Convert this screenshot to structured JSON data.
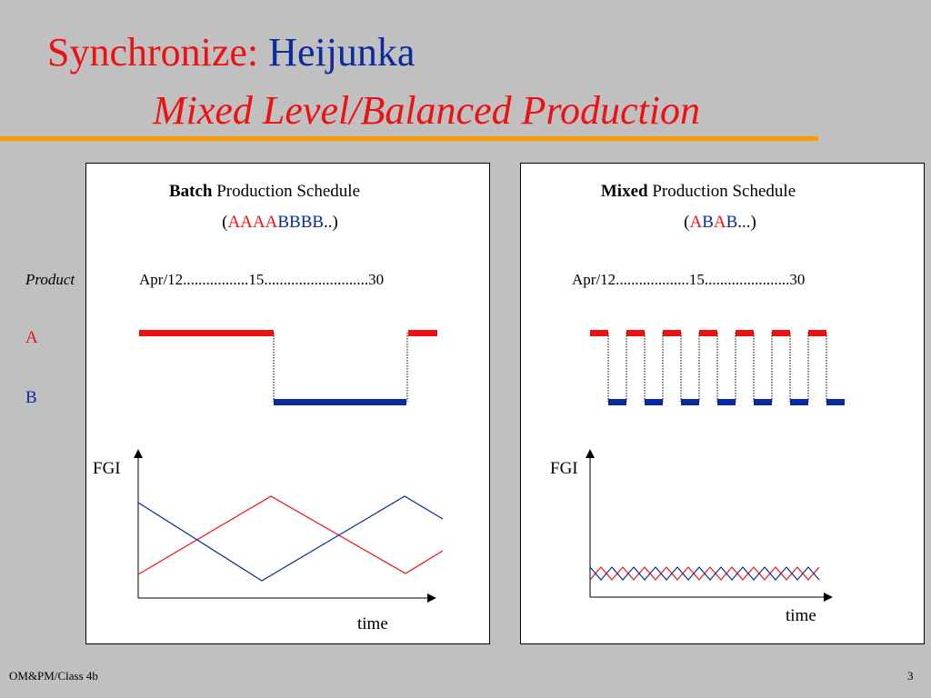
{
  "slide": {
    "title_part1": "Synchronize:",
    "title_part2": "Heijunka",
    "subtitle": "Mixed Level/Balanced Production",
    "footer_left": "OM&PM/Class 4b",
    "page_number": "3"
  },
  "rows": {
    "product_label": "Product",
    "a_label": "A",
    "b_label": "B"
  },
  "batch": {
    "heading_bold": "Batch",
    "heading_rest": "Production Schedule",
    "seq_open": "(",
    "seq_a": "AAAA",
    "seq_b": "BBBB",
    "seq_close": "..)",
    "dates": "Apr/12.................15...........................30",
    "fgi_label": "FGI",
    "time_label": "time"
  },
  "mixed": {
    "heading_bold": "Mixed",
    "heading_rest": "Production Schedule",
    "seq_open": "(",
    "seq_a1": "A",
    "seq_b1": "B",
    "seq_a2": "A",
    "seq_b2": "B",
    "seq_close": "...)",
    "dates": "Apr/12...................15......................30",
    "fgi_label": "FGI",
    "time_label": "time"
  },
  "colors": {
    "product_a": "#ee1111",
    "product_b": "#0a2a9e",
    "accent_rule": "#ff9900"
  }
}
